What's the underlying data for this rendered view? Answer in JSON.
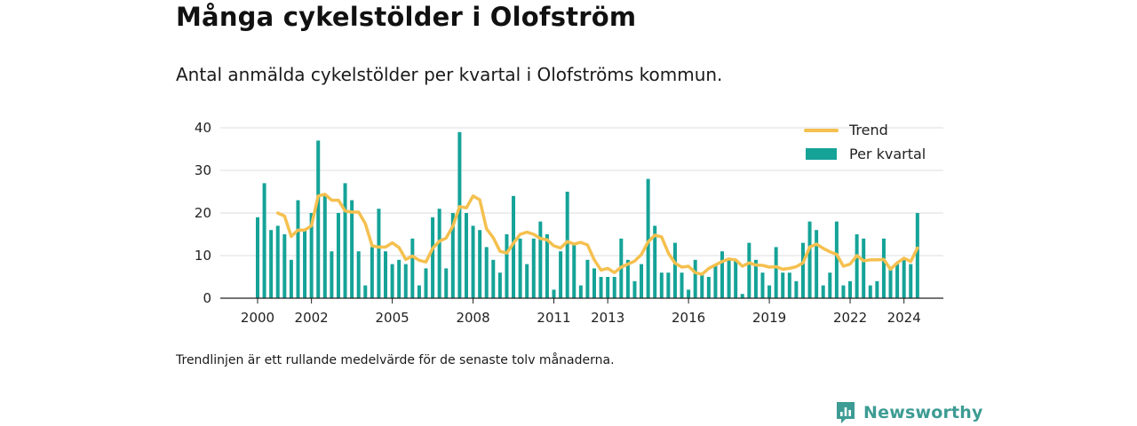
{
  "header": {
    "title": "Många cykelstölder i Olofström",
    "subtitle": "Antal anmälda cykelstölder per kvartal i Olofströms kommun."
  },
  "footer": {
    "note": "Trendlinjen är ett rullande medelvärde för de senaste tolv månaderna.",
    "brand": "Newsworthy"
  },
  "colors": {
    "bars": "#15a398",
    "trend": "#f5c04f",
    "brand": "#3d9c94"
  },
  "chart_data": {
    "type": "bar",
    "title": "",
    "xlabel": "",
    "ylabel": "",
    "ylim": [
      0,
      40
    ],
    "yticks": [
      0,
      10,
      20,
      30,
      40
    ],
    "xtick_labels": [
      "2000",
      "2002",
      "2005",
      "2008",
      "2011",
      "2013",
      "2016",
      "2019",
      "2022",
      "2024"
    ],
    "grid": true,
    "legend": {
      "position": "top-right",
      "items": [
        {
          "label": "Trend",
          "kind": "line"
        },
        {
          "label": "Per kvartal",
          "kind": "bar"
        }
      ]
    },
    "categories": [
      "2000 K1",
      "2000 K2",
      "2000 K3",
      "2000 K4",
      "2001 K1",
      "2001 K2",
      "2001 K3",
      "2001 K4",
      "2002 K1",
      "2002 K2",
      "2002 K3",
      "2002 K4",
      "2003 K1",
      "2003 K2",
      "2003 K3",
      "2003 K4",
      "2004 K1",
      "2004 K2",
      "2004 K3",
      "2004 K4",
      "2005 K1",
      "2005 K2",
      "2005 K3",
      "2005 K4",
      "2006 K1",
      "2006 K2",
      "2006 K3",
      "2006 K4",
      "2007 K1",
      "2007 K2",
      "2007 K3",
      "2007 K4",
      "2008 K1",
      "2008 K2",
      "2008 K3",
      "2008 K4",
      "2009 K1",
      "2009 K2",
      "2009 K3",
      "2009 K4",
      "2010 K1",
      "2010 K2",
      "2010 K3",
      "2010 K4",
      "2011 K1",
      "2011 K2",
      "2011 K3",
      "2011 K4",
      "2012 K1",
      "2012 K2",
      "2012 K3",
      "2012 K4",
      "2013 K1",
      "2013 K2",
      "2013 K3",
      "2013 K4",
      "2014 K1",
      "2014 K2",
      "2014 K3",
      "2014 K4",
      "2015 K1",
      "2015 K2",
      "2015 K3",
      "2015 K4",
      "2016 K1",
      "2016 K2",
      "2016 K3",
      "2016 K4",
      "2017 K1",
      "2017 K2",
      "2017 K3",
      "2017 K4",
      "2018 K1",
      "2018 K2",
      "2018 K3",
      "2018 K4",
      "2019 K1",
      "2019 K2",
      "2019 K3",
      "2019 K4",
      "2020 K1",
      "2020 K2",
      "2020 K3",
      "2020 K4",
      "2021 K1",
      "2021 K2",
      "2021 K3",
      "2021 K4",
      "2022 K1",
      "2022 K2",
      "2022 K3",
      "2022 K4",
      "2023 K1",
      "2023 K2",
      "2023 K3",
      "2023 K4",
      "2024 K1",
      "2024 K2",
      "2024 K3"
    ],
    "series": [
      {
        "name": "Per kvartal",
        "type": "bar",
        "values": [
          19,
          27,
          16,
          17,
          15,
          9,
          23,
          16,
          20,
          37,
          24,
          11,
          20,
          27,
          23,
          11,
          3,
          12,
          21,
          11,
          8,
          9,
          8,
          14,
          3,
          7,
          19,
          21,
          7,
          20,
          39,
          20,
          17,
          16,
          12,
          9,
          6,
          15,
          24,
          14,
          8,
          14,
          18,
          15,
          2,
          11,
          25,
          13,
          3,
          9,
          7,
          5,
          5,
          5,
          14,
          9,
          4,
          8,
          28,
          17,
          6,
          6,
          13,
          6,
          2,
          9,
          6,
          5,
          8,
          11,
          9,
          9,
          1,
          13,
          9,
          6,
          3,
          12,
          6,
          6,
          4,
          13,
          18,
          16,
          3,
          6,
          18,
          3,
          4,
          15,
          14,
          3,
          4,
          14,
          7,
          8,
          9,
          8,
          20
        ]
      },
      {
        "name": "Trend",
        "type": "line",
        "values": [
          null,
          null,
          null,
          20,
          19.3,
          14.5,
          16,
          16,
          17,
          24,
          24.4,
          23,
          23,
          20.5,
          20.2,
          20.2,
          17.5,
          12.3,
          12,
          12,
          13,
          11.9,
          9.1,
          9.9,
          8.9,
          8.5,
          11.7,
          13.4,
          14.1,
          16.9,
          21.5,
          21.2,
          24,
          23.1,
          16.3,
          14.2,
          11,
          10.6,
          12.9,
          15,
          15.5,
          15,
          14,
          13.7,
          12.3,
          11.8,
          13.3,
          12.7,
          13.1,
          12.5,
          9,
          6.6,
          7,
          6,
          7.3,
          8,
          8.7,
          10.3,
          13.2,
          14.8,
          14.4,
          10.6,
          8.2,
          7.3,
          7.5,
          6,
          5.6,
          7,
          7.8,
          8.6,
          9.2,
          9,
          7.5,
          8.3,
          7.8,
          7.7,
          7.3,
          7.4,
          6.8,
          7,
          7.4,
          8.3,
          12,
          12.7,
          11.7,
          10.9,
          10.3,
          7.5,
          8,
          10,
          8.8,
          9,
          9,
          9.1,
          6.8,
          8.3,
          9.4,
          8.6,
          11.8
        ]
      }
    ]
  }
}
